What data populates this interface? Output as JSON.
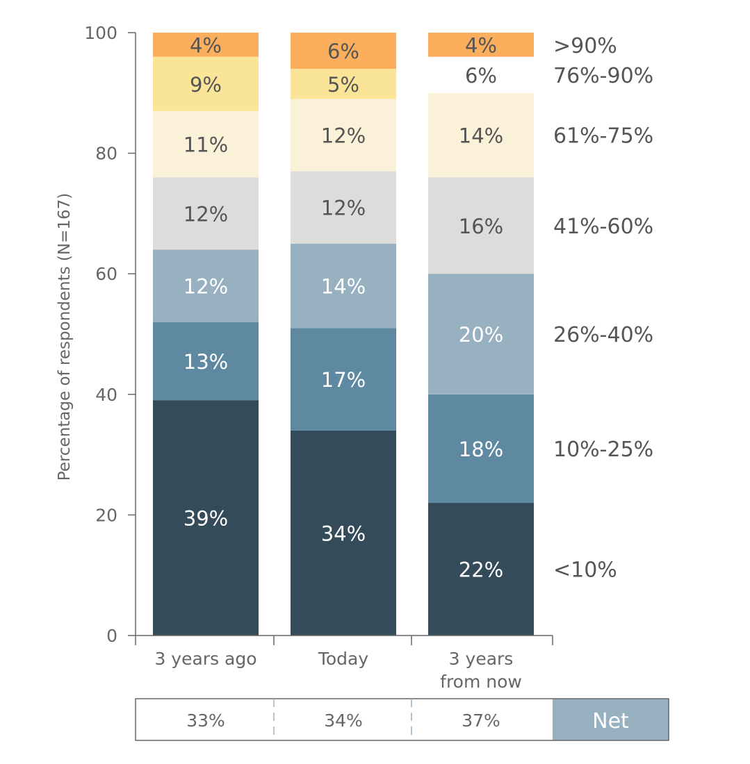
{
  "chart_data": {
    "type": "bar",
    "stacked": true,
    "title": "",
    "xlabel": "",
    "ylabel": "Percentage of respondents (N=167)",
    "ylim": [
      0,
      100
    ],
    "yticks": [
      "0",
      "20",
      "40",
      "60",
      "80",
      "100"
    ],
    "categories": [
      "3 years ago",
      "Today",
      "3 years from now"
    ],
    "series": [
      {
        "name": "<10%",
        "color": "#344b59",
        "text_color": "#ffffff",
        "values": [
          39,
          34,
          22
        ],
        "labels": [
          "39%",
          "34%",
          "22%"
        ]
      },
      {
        "name": "10%-25%",
        "color": "#5f89a1",
        "text_color": "#ffffff",
        "values": [
          13,
          17,
          18
        ],
        "labels": [
          "13%",
          "17%",
          "18%"
        ]
      },
      {
        "name": "26%-40%",
        "color": "#98b1c1",
        "text_color": "#ffffff",
        "values": [
          12,
          14,
          20
        ],
        "labels": [
          "12%",
          "14%",
          "20%"
        ]
      },
      {
        "name": "41%-60%",
        "color": "#dcdcda",
        "text_color": "#555555",
        "values": [
          12,
          12,
          16
        ],
        "labels": [
          "12%",
          "12%",
          "16%"
        ]
      },
      {
        "name": "61%-75%",
        "color": "#fbf0d8",
        "text_color": "#555555",
        "values": [
          11,
          12,
          14
        ],
        "labels": [
          "11%",
          "12%",
          "14%"
        ]
      },
      {
        "name": "76%-90%",
        "color": "#f9e497",
        "text_color": "#555555",
        "values": [
          9,
          5,
          6
        ],
        "labels": [
          "9%",
          "5%",
          "6%"
        ]
      },
      {
        "name": ">90%",
        "color": "#fbae5c",
        "text_color": "#555555",
        "values": [
          4,
          6,
          4
        ],
        "labels": [
          "4%",
          "6%",
          "4%"
        ]
      }
    ],
    "legend_position": "right",
    "net_table": {
      "header": "Net",
      "header_color": "#98b1c1",
      "values": [
        "33%",
        "34%",
        "37%"
      ]
    }
  }
}
